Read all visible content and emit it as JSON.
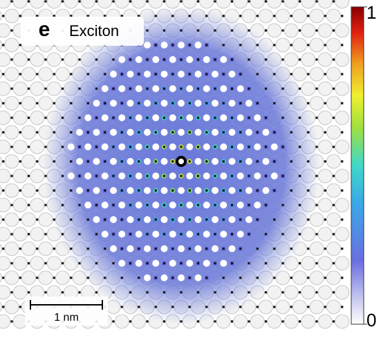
{
  "panel": {
    "label": "e",
    "title": "Exciton"
  },
  "scale_bar": {
    "label": "1 nm"
  },
  "colorbar": {
    "lim": [
      0,
      1
    ],
    "ticks": [
      0,
      1
    ]
  }
}
